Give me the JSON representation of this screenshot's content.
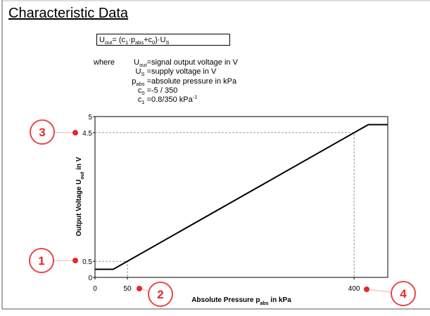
{
  "header": {
    "title": "Characteristic Data"
  },
  "formula": [
    {
      "text": "U"
    },
    {
      "sub": "out"
    },
    {
      "text": "= (c"
    },
    {
      "sub": "1"
    },
    {
      "text": "·p"
    },
    {
      "sub": "abs"
    },
    {
      "text": "+c"
    },
    {
      "sub": "0"
    },
    {
      "text": ")·U"
    },
    {
      "sub": "S"
    }
  ],
  "definitions": {
    "intro": "where",
    "rows": [
      {
        "symbol": [
          {
            "text": "U"
          },
          {
            "sub": "out"
          },
          {
            "text": "="
          }
        ],
        "description": [
          {
            "text": "signal output voltage in V"
          }
        ]
      },
      {
        "symbol": [
          {
            "text": "U"
          },
          {
            "sub": "S"
          },
          {
            "text": " ="
          }
        ],
        "description": [
          {
            "text": "supply voltage in V"
          }
        ]
      },
      {
        "symbol": [
          {
            "text": "p"
          },
          {
            "sub": "abs"
          },
          {
            "text": " ="
          }
        ],
        "description": [
          {
            "text": "absolute pressure in kPa"
          }
        ]
      },
      {
        "symbol": [
          {
            "text": "c"
          },
          {
            "sub": "0"
          },
          {
            "text": " ="
          }
        ],
        "description": [
          {
            "text": "-5 / 350"
          }
        ]
      },
      {
        "symbol": [
          {
            "text": "c"
          },
          {
            "sub": "1"
          },
          {
            "text": " ="
          }
        ],
        "description": [
          {
            "text": "0.8/350 kPa"
          },
          {
            "sup": "-1"
          }
        ]
      }
    ]
  },
  "chart_data": {
    "type": "line",
    "x": [
      0,
      28,
      422,
      452
    ],
    "values": [
      0.25,
      0.25,
      4.75,
      4.75
    ],
    "color": "#000000",
    "xlim": [
      0,
      452
    ],
    "ylim": [
      0,
      5
    ],
    "xticks": [
      0,
      50,
      400
    ],
    "yticks": [
      0,
      0.5,
      4.5,
      5
    ],
    "xlabel": [
      {
        "text": "Absolute Pressure p"
      },
      {
        "sub": "abs"
      },
      {
        "text": " in kPa"
      }
    ],
    "ylabel": [
      {
        "text": "Output Voltage U"
      },
      {
        "sub": "out"
      },
      {
        "text": " in V"
      }
    ],
    "reference_points": [
      {
        "x": 50,
        "y": 0.5
      },
      {
        "x": 400,
        "y": 4.5
      }
    ],
    "callouts": [
      "1",
      "2",
      "3",
      "4"
    ]
  }
}
